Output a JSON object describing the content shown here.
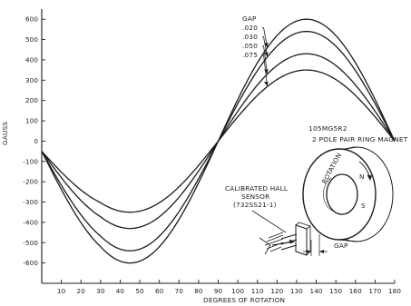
{
  "chart_data": {
    "type": "line",
    "title": "",
    "xlabel": "DEGREES OF ROTATION",
    "ylabel": "GAUSS",
    "xlim": [
      0,
      180
    ],
    "ylim": [
      -700,
      650
    ],
    "x_ticks": [
      10,
      20,
      30,
      40,
      50,
      60,
      70,
      80,
      90,
      100,
      110,
      120,
      130,
      140,
      150,
      160,
      170,
      180
    ],
    "y_ticks": [
      600,
      500,
      400,
      300,
      200,
      100,
      0,
      -100,
      -200,
      -300,
      -400,
      -500,
      -600
    ],
    "grid": false,
    "legend": {
      "title": "GAP",
      "position": "top-right",
      "entries": [
        ".020",
        ".030",
        ".050",
        ".075"
      ]
    },
    "series": [
      {
        "name": ".020",
        "amplitude": 600,
        "x": [
          0,
          20,
          40,
          60,
          80,
          90,
          100,
          120,
          130,
          140,
          160,
          180
        ],
        "values": [
          -50,
          -490,
          -600,
          -490,
          -170,
          0,
          220,
          570,
          600,
          570,
          350,
          0
        ]
      },
      {
        "name": ".030",
        "amplitude": 540,
        "x": [
          0,
          20,
          40,
          60,
          80,
          90,
          100,
          120,
          130,
          140,
          160,
          180
        ],
        "values": [
          -50,
          -410,
          -540,
          -410,
          -150,
          0,
          200,
          510,
          540,
          510,
          320,
          0
        ]
      },
      {
        "name": ".050",
        "amplitude": 430,
        "x": [
          0,
          20,
          40,
          60,
          80,
          90,
          100,
          120,
          130,
          140,
          160,
          180
        ],
        "values": [
          -50,
          -330,
          -430,
          -330,
          -120,
          0,
          160,
          400,
          430,
          400,
          250,
          0
        ]
      },
      {
        "name": ".075",
        "amplitude": 350,
        "x": [
          0,
          20,
          40,
          60,
          80,
          90,
          100,
          120,
          130,
          140,
          160,
          180
        ],
        "values": [
          -50,
          -270,
          -350,
          -270,
          -100,
          0,
          130,
          330,
          350,
          330,
          200,
          0
        ]
      }
    ],
    "annotations": {
      "magnet_model": "105MG5R2",
      "magnet_desc": "2 POLE PAIR RING MAGNET",
      "sensor_line1": "CALIBRATED HALL",
      "sensor_line2": "SENSOR",
      "sensor_part": "(732SS21-1)",
      "rotation": "ROTATION",
      "gap": "GAP"
    }
  }
}
